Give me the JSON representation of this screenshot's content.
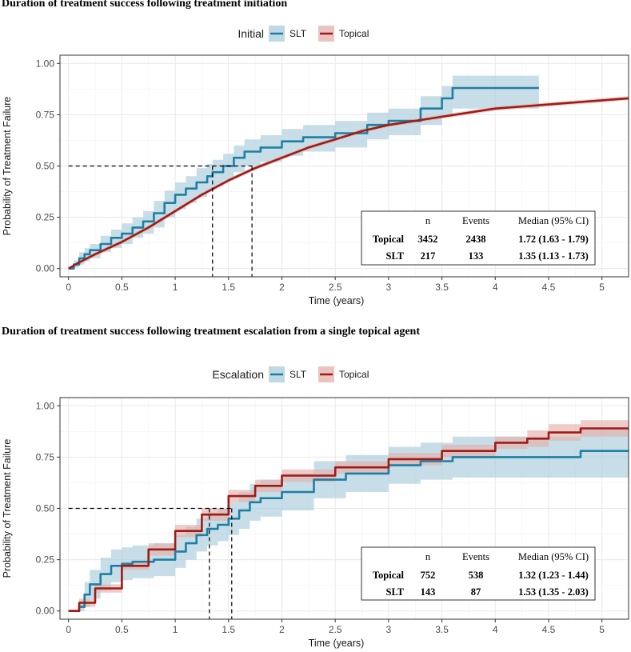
{
  "chart_data": [
    {
      "type": "line",
      "subtype": "kaplan-meier cumulative incidence",
      "title": "Duration of treatment success following treatment initiation",
      "legend_title": "Initial",
      "legend_position": "top",
      "xlabel": "Time (years)",
      "ylabel": "Probability of Treatment Failure",
      "xlim": [
        -0.08,
        5.25
      ],
      "ylim": [
        -0.04,
        1.04
      ],
      "xticks": [
        0,
        0.5,
        1,
        1.5,
        2,
        2.5,
        3,
        3.5,
        4,
        4.5,
        5
      ],
      "xtick_labels": [
        "0",
        "0.5",
        "1",
        "1.5",
        "2",
        "2.5",
        "3",
        "3.5",
        "4",
        "4.5",
        "5"
      ],
      "yticks": [
        0,
        0.25,
        0.5,
        0.75,
        1.0
      ],
      "ytick_labels": [
        "0.00",
        "0.25",
        "0.50",
        "0.75",
        "1.00"
      ],
      "grid": true,
      "series": [
        {
          "name": "SLT",
          "color": "#1f7fa3",
          "band_color": "#a9ccdb",
          "step": true,
          "x": [
            0,
            0.05,
            0.1,
            0.15,
            0.2,
            0.3,
            0.4,
            0.5,
            0.6,
            0.7,
            0.8,
            0.9,
            1.0,
            1.1,
            1.2,
            1.3,
            1.35,
            1.45,
            1.55,
            1.65,
            1.8,
            2.0,
            2.2,
            2.5,
            2.8,
            3.0,
            3.3,
            3.5,
            3.6,
            4.0,
            4.41
          ],
          "y": [
            0,
            0.02,
            0.05,
            0.07,
            0.09,
            0.12,
            0.15,
            0.17,
            0.2,
            0.23,
            0.27,
            0.32,
            0.36,
            0.39,
            0.42,
            0.45,
            0.47,
            0.5,
            0.54,
            0.57,
            0.59,
            0.62,
            0.64,
            0.66,
            0.7,
            0.72,
            0.78,
            0.83,
            0.88,
            0.88,
            0.88
          ],
          "lower": [
            0,
            0.005,
            0.02,
            0.035,
            0.05,
            0.08,
            0.1,
            0.12,
            0.15,
            0.17,
            0.2,
            0.25,
            0.29,
            0.32,
            0.35,
            0.38,
            0.4,
            0.43,
            0.47,
            0.5,
            0.52,
            0.55,
            0.57,
            0.59,
            0.63,
            0.65,
            0.7,
            0.74,
            0.78,
            0.78,
            0.78
          ],
          "upper": [
            0,
            0.04,
            0.08,
            0.1,
            0.12,
            0.16,
            0.19,
            0.22,
            0.25,
            0.28,
            0.33,
            0.38,
            0.42,
            0.45,
            0.49,
            0.51,
            0.53,
            0.56,
            0.6,
            0.63,
            0.65,
            0.68,
            0.7,
            0.72,
            0.76,
            0.78,
            0.84,
            0.89,
            0.94,
            0.94,
            0.94
          ]
        },
        {
          "name": "Topical",
          "color": "#a01b14",
          "band_color": "#e4b0ac",
          "step": false,
          "x": [
            0,
            0.1,
            0.25,
            0.5,
            0.75,
            1.0,
            1.25,
            1.5,
            1.75,
            2.0,
            2.25,
            2.5,
            2.75,
            3.0,
            3.5,
            4.0,
            4.5,
            5.0,
            5.25
          ],
          "y": [
            0,
            0.03,
            0.07,
            0.13,
            0.2,
            0.28,
            0.36,
            0.43,
            0.49,
            0.54,
            0.59,
            0.63,
            0.67,
            0.7,
            0.74,
            0.78,
            0.8,
            0.82,
            0.83
          ],
          "lower": [
            0,
            0.02,
            0.06,
            0.12,
            0.19,
            0.27,
            0.35,
            0.42,
            0.48,
            0.53,
            0.58,
            0.62,
            0.66,
            0.69,
            0.73,
            0.77,
            0.79,
            0.81,
            0.82
          ],
          "upper": [
            0,
            0.04,
            0.08,
            0.14,
            0.21,
            0.29,
            0.37,
            0.44,
            0.5,
            0.55,
            0.6,
            0.64,
            0.68,
            0.71,
            0.75,
            0.79,
            0.81,
            0.83,
            0.84
          ]
        }
      ],
      "median_lines": [
        {
          "series": "SLT",
          "x": 1.35,
          "y": 0.5
        },
        {
          "series": "Topical",
          "x": 1.72,
          "y": 0.5
        }
      ],
      "table": {
        "headers": [
          "",
          "n",
          "Events",
          "Median (95% CI)"
        ],
        "rows": [
          [
            "Topical",
            "3452",
            "2438",
            "1.72 (1.63 - 1.79)"
          ],
          [
            "SLT",
            "217",
            "133",
            "1.35 (1.13 - 1.73)"
          ]
        ]
      }
    },
    {
      "type": "line",
      "subtype": "kaplan-meier cumulative incidence",
      "title": "Duration of treatment success following treatment escalation from a single topical agent",
      "legend_title": "Escalation",
      "legend_position": "top",
      "xlabel": "Time (years)",
      "ylabel": "Probability of Treatment Failure",
      "xlim": [
        -0.08,
        5.25
      ],
      "ylim": [
        -0.04,
        1.04
      ],
      "xticks": [
        0,
        0.5,
        1,
        1.5,
        2,
        2.5,
        3,
        3.5,
        4,
        4.5,
        5
      ],
      "xtick_labels": [
        "0",
        "0.5",
        "1",
        "1.5",
        "2",
        "2.5",
        "3",
        "3.5",
        "4",
        "4.5",
        "5"
      ],
      "yticks": [
        0,
        0.25,
        0.5,
        0.75,
        1.0
      ],
      "ytick_labels": [
        "0.00",
        "0.25",
        "0.50",
        "0.75",
        "1.00"
      ],
      "grid": true,
      "series": [
        {
          "name": "SLT",
          "color": "#1f7fa3",
          "band_color": "#a9ccdb",
          "step": true,
          "x": [
            0,
            0.1,
            0.15,
            0.2,
            0.3,
            0.4,
            0.5,
            0.6,
            0.8,
            1.0,
            1.1,
            1.2,
            1.3,
            1.4,
            1.5,
            1.6,
            1.7,
            1.8,
            2.0,
            2.3,
            2.6,
            3.0,
            3.3,
            3.6,
            4.0,
            4.8,
            5.25
          ],
          "y": [
            0,
            0.02,
            0.08,
            0.13,
            0.18,
            0.22,
            0.23,
            0.24,
            0.25,
            0.29,
            0.33,
            0.37,
            0.4,
            0.42,
            0.45,
            0.49,
            0.53,
            0.55,
            0.58,
            0.64,
            0.67,
            0.71,
            0.73,
            0.75,
            0.75,
            0.78,
            0.78
          ],
          "lower": [
            0,
            0.0,
            0.02,
            0.06,
            0.1,
            0.14,
            0.15,
            0.16,
            0.17,
            0.21,
            0.25,
            0.29,
            0.32,
            0.34,
            0.37,
            0.4,
            0.44,
            0.46,
            0.49,
            0.55,
            0.58,
            0.62,
            0.64,
            0.65,
            0.65,
            0.65,
            0.65
          ],
          "upper": [
            0,
            0.05,
            0.14,
            0.2,
            0.26,
            0.3,
            0.31,
            0.32,
            0.33,
            0.37,
            0.41,
            0.45,
            0.48,
            0.5,
            0.53,
            0.58,
            0.62,
            0.64,
            0.67,
            0.73,
            0.76,
            0.8,
            0.82,
            0.85,
            0.85,
            0.89,
            0.89
          ]
        },
        {
          "name": "Topical",
          "color": "#a01b14",
          "band_color": "#e4b0ac",
          "step": true,
          "x": [
            0,
            0.1,
            0.25,
            0.5,
            0.75,
            1.0,
            1.25,
            1.5,
            1.75,
            2.0,
            2.5,
            3.0,
            3.5,
            4.0,
            4.3,
            4.5,
            4.8,
            5.25
          ],
          "y": [
            0,
            0.04,
            0.11,
            0.22,
            0.3,
            0.39,
            0.47,
            0.56,
            0.61,
            0.66,
            0.7,
            0.74,
            0.78,
            0.82,
            0.84,
            0.87,
            0.89,
            0.89
          ],
          "lower": [
            0,
            0.02,
            0.09,
            0.2,
            0.27,
            0.36,
            0.44,
            0.53,
            0.58,
            0.63,
            0.67,
            0.71,
            0.75,
            0.79,
            0.8,
            0.83,
            0.85,
            0.85
          ],
          "upper": [
            0,
            0.06,
            0.13,
            0.24,
            0.33,
            0.42,
            0.5,
            0.59,
            0.64,
            0.69,
            0.73,
            0.77,
            0.81,
            0.85,
            0.88,
            0.91,
            0.93,
            0.93
          ]
        }
      ],
      "median_lines": [
        {
          "series": "Topical",
          "x": 1.32,
          "y": 0.5
        },
        {
          "series": "SLT",
          "x": 1.53,
          "y": 0.5
        }
      ],
      "table": {
        "headers": [
          "",
          "n",
          "Events",
          "Median (95% CI)"
        ],
        "rows": [
          [
            "Topical",
            "752",
            "538",
            "1.32 (1.23 - 1.44)"
          ],
          [
            "SLT",
            "143",
            "87",
            "1.53 (1.35 - 2.03)"
          ]
        ]
      }
    }
  ]
}
